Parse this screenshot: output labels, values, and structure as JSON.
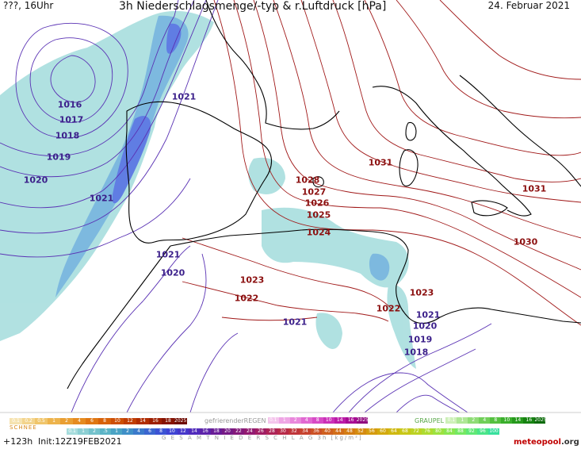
{
  "header": {
    "left": "???, 16Uhr",
    "title": "3h Niederschlagsmenge/-typ & r.Luftdruck [hPa]",
    "date": "24. Februar 2021"
  },
  "isobar_labels": [
    {
      "text": "1016",
      "tone": "lo"
    },
    {
      "text": "1017",
      "tone": "lo"
    },
    {
      "text": "1018",
      "tone": "lo"
    },
    {
      "text": "1019",
      "tone": "lo"
    },
    {
      "text": "1020",
      "tone": "lo"
    },
    {
      "text": "1021",
      "tone": "lo"
    },
    {
      "text": "1021",
      "tone": "lo"
    },
    {
      "text": "1021",
      "tone": "lo"
    },
    {
      "text": "1020",
      "tone": "lo"
    },
    {
      "text": "1021",
      "tone": "lo"
    },
    {
      "text": "1028",
      "tone": "hi"
    },
    {
      "text": "1027",
      "tone": "hi"
    },
    {
      "text": "1026",
      "tone": "hi"
    },
    {
      "text": "1025",
      "tone": "hi"
    },
    {
      "text": "1024",
      "tone": "hi"
    },
    {
      "text": "1023",
      "tone": "hi"
    },
    {
      "text": "1022",
      "tone": "hi"
    },
    {
      "text": "1031",
      "tone": "hi"
    },
    {
      "text": "1031",
      "tone": "hi"
    },
    {
      "text": "1030",
      "tone": "hi"
    },
    {
      "text": "1023",
      "tone": "hi"
    },
    {
      "text": "1022",
      "tone": "hi"
    },
    {
      "text": "1021",
      "tone": "lo"
    },
    {
      "text": "1020",
      "tone": "lo"
    },
    {
      "text": "1019",
      "tone": "lo"
    },
    {
      "text": "1018",
      "tone": "lo"
    }
  ],
  "legend": {
    "snow_label": "SCHNEE",
    "snow_values": [
      "0.1",
      "0.2",
      "0.5",
      "1",
      "2",
      "4",
      "6",
      "8",
      "10",
      "12",
      "14",
      "16",
      "18",
      "2025+"
    ],
    "snow_colors": [
      "#f6e3b0",
      "#f3d48c",
      "#f0c56a",
      "#edb34b",
      "#e99f33",
      "#e58b20",
      "#df7612",
      "#d76109",
      "#cd4f05",
      "#c03d03",
      "#b02c02",
      "#9d1e01",
      "#861200",
      "#6e0900"
    ],
    "fzrain_label": "gefrierenderREGEN",
    "fzrain_values": [
      "0.1",
      "1",
      "2",
      "4",
      "8",
      "10",
      "14",
      "16",
      "2025+"
    ],
    "fzrain_colors": [
      "#f4c5ec",
      "#efa6e5",
      "#e987dc",
      "#e168d2",
      "#d74ac6",
      "#cb2fb8",
      "#bb1aa7",
      "#a70b93",
      "#8f057d"
    ],
    "graupel_label": "GRAUPEL",
    "graupel_values": [
      "0.1",
      "1",
      "2",
      "4",
      "8",
      "10",
      "14",
      "16",
      "2025+"
    ],
    "graupel_colors": [
      "#cdf0b8",
      "#aee796",
      "#8fdc76",
      "#70cf58",
      "#54c03f",
      "#3aae2b",
      "#26991c",
      "#168211",
      "#0a6a08"
    ],
    "total_label": "G E S A M T N I E D E R S C H L A G  3h  [kg/m²]",
    "total_values": [
      "0.1",
      "1",
      "2",
      ".5",
      "1",
      "2",
      "4",
      "6",
      "8",
      "10",
      "12",
      "14",
      "16",
      "18",
      "20",
      "22",
      "24",
      "26",
      "28",
      "30",
      "32",
      "34",
      "36",
      "40",
      "44",
      "48",
      "52",
      "56",
      "60",
      "64",
      "68",
      "72",
      "76",
      "80",
      "84",
      "88",
      "92",
      "96",
      "100"
    ],
    "total_colors": [
      "#a6dcdc",
      "#8ccfd3",
      "#73c2cc",
      "#5bb4c6",
      "#4aa3c4",
      "#3f8fc7",
      "#3b7acb",
      "#3a66d0",
      "#3b53d4",
      "#3e43d3",
      "#4536c9",
      "#502bbb",
      "#5c23a9",
      "#681c96",
      "#751a85",
      "#83197a",
      "#921a70",
      "#a01d63",
      "#ad2356",
      "#b72a48",
      "#bf353a",
      "#c6432f",
      "#cb5126",
      "#cf601f",
      "#d26e19",
      "#d47d14",
      "#d58b10",
      "#d59b0e",
      "#d3aa0e",
      "#cfb911",
      "#c8c718",
      "#bcd223",
      "#aedb30",
      "#9de23f",
      "#8ae650",
      "#75e862",
      "#5fe875",
      "#4ae589",
      "#38e09e"
    ]
  },
  "footer": {
    "forecast": "+123h",
    "init": "Init:12Z19FEB2021",
    "brand": "meteopool",
    "brand_suffix": ".org"
  },
  "colors": {
    "coast": "#000000",
    "isobar_low": "#5a32b4",
    "isobar_high": "#a01818",
    "rain_light": "#a8dede",
    "rain_mid": "#6fb2dc",
    "rain_heavy": "#4f6fe0"
  }
}
